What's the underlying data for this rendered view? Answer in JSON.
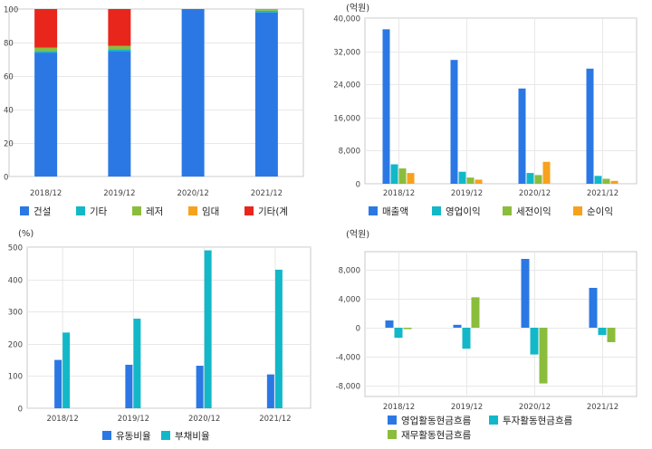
{
  "colors": {
    "blue": "#2b78e4",
    "cyan": "#12b8c8",
    "green": "#8bbd3c",
    "orange": "#f6a21e",
    "red": "#e8261c",
    "grid": "#e8e8e8",
    "frame": "#c8c8c8",
    "axis": "#444444"
  },
  "chart_data": [
    {
      "type": "bar",
      "stacked": true,
      "unit": "",
      "categories": [
        "2018/12",
        "2019/12",
        "2020/12",
        "2021/12"
      ],
      "ylim": [
        0,
        100
      ],
      "yticks": [
        0,
        20,
        40,
        60,
        80,
        100
      ],
      "ytick_labels": [
        "0",
        "20",
        "40",
        "60",
        "80",
        "100"
      ],
      "grid": true,
      "legend_position": "bottom",
      "series": [
        {
          "name": "건설",
          "color": "blue",
          "values": [
            74,
            75,
            100,
            98
          ]
        },
        {
          "name": "기타",
          "color": "cyan",
          "values": [
            1,
            1,
            0,
            1
          ]
        },
        {
          "name": "레저",
          "color": "green",
          "values": [
            2,
            2,
            0,
            1
          ]
        },
        {
          "name": "임대",
          "color": "orange",
          "values": [
            0,
            0,
            0,
            0
          ]
        },
        {
          "name": "기타(계",
          "color": "red",
          "values": [
            23,
            22,
            0,
            0
          ]
        }
      ]
    },
    {
      "type": "bar",
      "unit": "(억원)",
      "categories": [
        "2018/12",
        "2019/12",
        "2020/12",
        "2021/12"
      ],
      "ylim": [
        0,
        40000
      ],
      "yticks": [
        0,
        8000,
        16000,
        24000,
        32000,
        40000
      ],
      "ytick_labels": [
        "0",
        "8,000",
        "16,000",
        "24,000",
        "32,000",
        "40,000"
      ],
      "grid": true,
      "legend_position": "bottom",
      "series": [
        {
          "name": "매출액",
          "color": "blue",
          "values": [
            37300,
            29900,
            23000,
            27800
          ]
        },
        {
          "name": "영업이익",
          "color": "cyan",
          "values": [
            4700,
            2900,
            2600,
            1900
          ]
        },
        {
          "name": "세전이익",
          "color": "green",
          "values": [
            3700,
            1500,
            2100,
            1200
          ]
        },
        {
          "name": "순이익",
          "color": "orange",
          "values": [
            2600,
            1000,
            5300,
            700
          ]
        }
      ]
    },
    {
      "type": "bar",
      "unit": "(%)",
      "categories": [
        "2018/12",
        "2019/12",
        "2020/12",
        "2021/12"
      ],
      "ylim": [
        0,
        500
      ],
      "yticks": [
        0,
        100,
        200,
        300,
        400,
        500
      ],
      "ytick_labels": [
        "0",
        "100",
        "200",
        "300",
        "400",
        "500"
      ],
      "grid": true,
      "legend_position": "bottom",
      "series": [
        {
          "name": "유동비율",
          "color": "blue",
          "values": [
            150,
            135,
            132,
            105
          ]
        },
        {
          "name": "부채비율",
          "color": "cyan",
          "values": [
            235,
            278,
            490,
            430
          ]
        }
      ]
    },
    {
      "type": "bar",
      "unit": "(억원)",
      "categories": [
        "2018/12",
        "2019/12",
        "2020/12",
        "2021/12"
      ],
      "ylim": [
        -9500,
        10500
      ],
      "yticks": [
        -8000,
        -4000,
        0,
        4000,
        8000
      ],
      "ytick_labels": [
        "-8,000",
        "-4,000",
        "0",
        "4,000",
        "8,000"
      ],
      "grid": true,
      "legend_position": "bottom",
      "series": [
        {
          "name": "영업활동현금흐름",
          "color": "blue",
          "values": [
            1000,
            400,
            9500,
            5500
          ]
        },
        {
          "name": "투자활동현금흐름",
          "color": "cyan",
          "values": [
            -1400,
            -2900,
            -3700,
            -1000
          ]
        },
        {
          "name": "재무활동현금흐름",
          "color": "green",
          "values": [
            -200,
            4200,
            -7700,
            -2000
          ]
        }
      ]
    }
  ]
}
